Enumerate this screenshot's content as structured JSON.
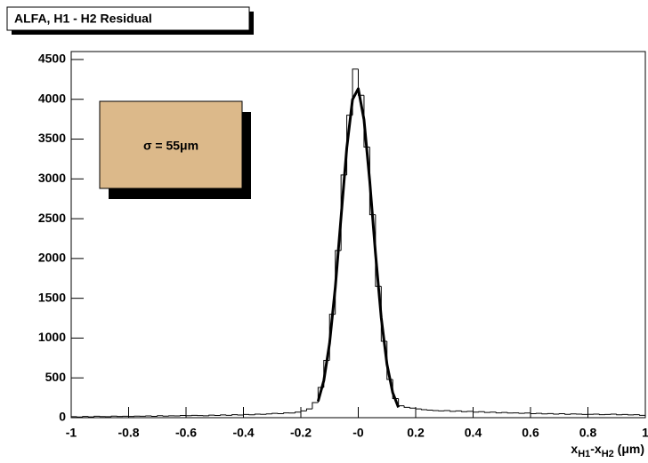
{
  "chart_data": {
    "type": "histogram",
    "title": "ALFA, H1 - H2 Residual",
    "annotation": "σ = 55μm",
    "x_label_parts": [
      "x",
      "H1",
      "-x",
      "H2",
      " (μm)"
    ],
    "bins": [
      -1,
      -0.98,
      -0.96,
      -0.94,
      -0.92,
      -0.9,
      -0.88,
      -0.86,
      -0.84,
      -0.82,
      -0.8,
      -0.78,
      -0.76,
      -0.74,
      -0.72,
      -0.7,
      -0.68,
      -0.66,
      -0.64,
      -0.62,
      -0.6,
      -0.58,
      -0.56,
      -0.54,
      -0.52,
      -0.5,
      -0.48,
      -0.46,
      -0.44,
      -0.42,
      -0.4,
      -0.38,
      -0.36,
      -0.34,
      -0.32,
      -0.3,
      -0.28,
      -0.26,
      -0.24,
      -0.22,
      -0.2,
      -0.18,
      -0.16,
      -0.14,
      -0.12,
      -0.1,
      -0.08,
      -0.06,
      -0.04,
      -0.02,
      0,
      0.02,
      0.04,
      0.06,
      0.08,
      0.1,
      0.12,
      0.14,
      0.16,
      0.18,
      0.2,
      0.22,
      0.24,
      0.26,
      0.28,
      0.3,
      0.32,
      0.34,
      0.36,
      0.38,
      0.4,
      0.42,
      0.44,
      0.46,
      0.48,
      0.5,
      0.52,
      0.54,
      0.56,
      0.58,
      0.6,
      0.62,
      0.64,
      0.66,
      0.68,
      0.7,
      0.72,
      0.74,
      0.76,
      0.78,
      0.8,
      0.82,
      0.84,
      0.86,
      0.88,
      0.9,
      0.92,
      0.94,
      0.96,
      0.98,
      1
    ],
    "values": [
      12,
      8,
      15,
      10,
      18,
      14,
      12,
      20,
      16,
      18,
      15,
      20,
      18,
      22,
      17,
      25,
      20,
      24,
      22,
      28,
      25,
      30,
      27,
      24,
      32,
      28,
      35,
      30,
      38,
      34,
      40,
      36,
      45,
      42,
      48,
      55,
      50,
      60,
      58,
      70,
      85,
      110,
      190,
      380,
      720,
      1300,
      2100,
      3050,
      3800,
      4380,
      4050,
      3400,
      2550,
      1650,
      960,
      480,
      240,
      150,
      130,
      120,
      110,
      100,
      95,
      90,
      85,
      90,
      80,
      85,
      75,
      80,
      70,
      75,
      65,
      70,
      60,
      65,
      58,
      60,
      55,
      58,
      50,
      55,
      48,
      52,
      45,
      50,
      42,
      48,
      45,
      40,
      42,
      45,
      38,
      40,
      44,
      36,
      40,
      35,
      38,
      30
    ],
    "color": "#000000",
    "fit": {
      "x": [
        -0.14,
        -0.12,
        -0.1,
        -0.08,
        -0.06,
        -0.04,
        -0.02,
        0,
        0.02,
        0.04,
        0.06,
        0.08,
        0.1,
        0.12,
        0.14
      ],
      "values": [
        205,
        466,
        935,
        1638,
        2517,
        3390,
        3998,
        4133,
        3743,
        2970,
        2064,
        1257,
        671,
        314,
        129
      ],
      "color": "#000000"
    },
    "xlim": [
      -1,
      1
    ],
    "ylim": [
      0,
      4600
    ],
    "xticks": [
      -1,
      -0.8,
      -0.6,
      -0.4,
      -0.2,
      {
        "value": 0,
        "label": "-0"
      },
      0.2,
      0.4,
      0.6,
      0.8,
      1
    ],
    "yticks": [
      0,
      500,
      1000,
      1500,
      2000,
      2500,
      3000,
      3500,
      4000,
      4500
    ],
    "annotation_color": "#dcb98a"
  }
}
